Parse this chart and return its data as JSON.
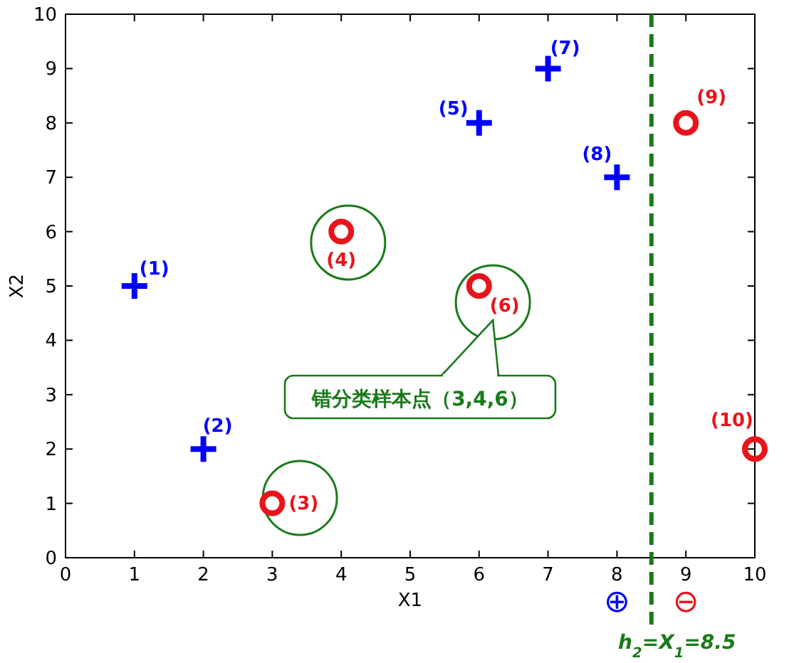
{
  "chart_data": {
    "type": "scatter",
    "xlabel": "X1",
    "ylabel": "X2",
    "series": [
      {
        "color": "#0000ff",
        "marker": "cross",
        "x": [
          1,
          2,
          6,
          7,
          8
        ],
        "values": [
          5,
          2,
          8,
          9,
          7
        ]
      },
      {
        "color": "#e8141b",
        "marker": "circle",
        "x": [
          3,
          4,
          6,
          9,
          10
        ],
        "values": [
          1,
          6,
          5,
          8,
          2
        ]
      }
    ],
    "xlim": [
      0,
      10
    ],
    "ylim": [
      0,
      10
    ],
    "xticks": [
      0,
      1,
      2,
      3,
      4,
      5,
      6,
      7,
      8,
      9,
      10
    ],
    "yticks": [
      0,
      1,
      2,
      3,
      4,
      5,
      6,
      7,
      8,
      9,
      10
    ],
    "grid": false,
    "ref_lines": [
      {
        "axis": "x",
        "value": 8.5,
        "label": "h$_{2}$=X$_{1}$=8.5",
        "color": "#1a7a1a",
        "line_style": "dashed"
      }
    ],
    "annotations": [
      {
        "text": "(1)",
        "x": 1,
        "y": 5
      },
      {
        "text": "(2)",
        "x": 2,
        "y": 2
      },
      {
        "text": "(3)",
        "x": 3,
        "y": 1
      },
      {
        "text": "(4)",
        "x": 4,
        "y": 6
      },
      {
        "text": "(5)",
        "x": 6,
        "y": 8
      },
      {
        "text": "(6)",
        "x": 6,
        "y": 5
      },
      {
        "text": "(7)",
        "x": 7,
        "y": 9
      },
      {
        "text": "(8)",
        "x": 8,
        "y": 7
      },
      {
        "text": "(9)",
        "x": 9,
        "y": 8
      },
      {
        "text": "(10)",
        "x": 10,
        "y": 2
      },
      "错分类样本点（3,4,6）",
      "⊕",
      "⊖"
    ]
  }
}
